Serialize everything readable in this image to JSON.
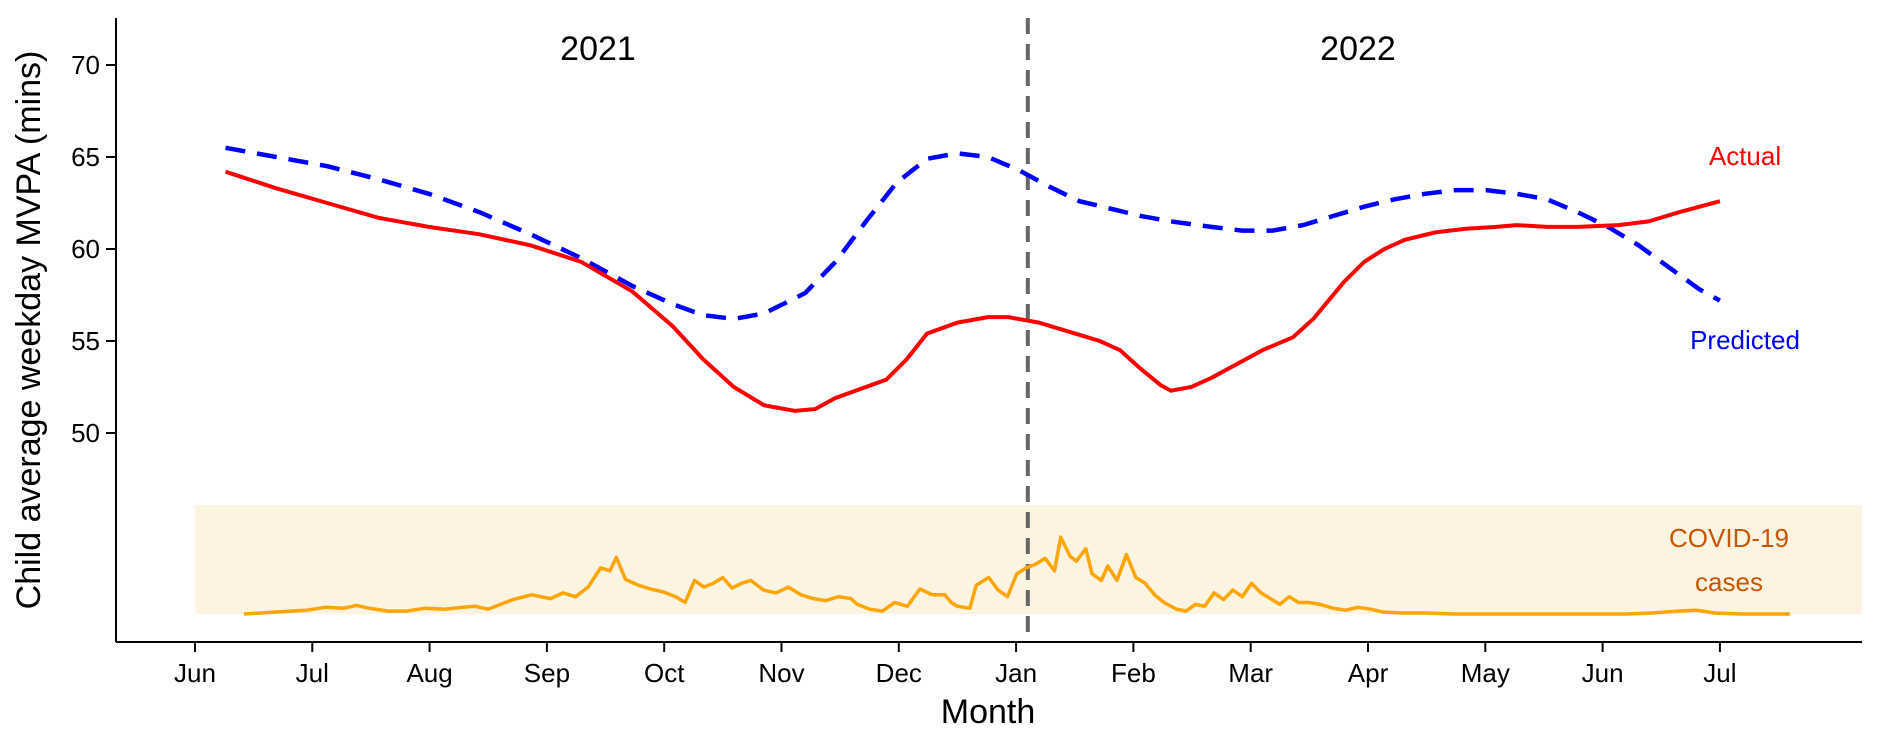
{
  "chart_data": {
    "type": "line",
    "xlabel": "Month",
    "ylabel": "Child average weekday MVPA (mins)",
    "x_tick_labels": [
      "Jun",
      "Jul",
      "Aug",
      "Sep",
      "Oct",
      "Nov",
      "Dec",
      "Jan",
      "Feb",
      "Mar",
      "Apr",
      "May",
      "Jun",
      "Jul"
    ],
    "x_range_months": [
      0,
      14.6
    ],
    "ylim": [
      42.5,
      72.5
    ],
    "y_ticks": [
      50,
      55,
      60,
      65,
      70
    ],
    "year_labels": [
      "2021",
      "2022"
    ],
    "year_divider_month": 7.1,
    "grid": false,
    "series": [
      {
        "name": "Actual",
        "color": "#ff0000",
        "dash": "solid",
        "points": [
          [
            0.3,
            64.2
          ],
          [
            0.8,
            63.3
          ],
          [
            1.3,
            62.5
          ],
          [
            1.8,
            61.7
          ],
          [
            2.3,
            61.2
          ],
          [
            2.8,
            60.8
          ],
          [
            3.3,
            60.2
          ],
          [
            3.8,
            59.3
          ],
          [
            4.3,
            57.7
          ],
          [
            4.7,
            55.8
          ],
          [
            5.0,
            54.0
          ],
          [
            5.3,
            52.5
          ],
          [
            5.6,
            51.5
          ],
          [
            5.9,
            51.2
          ],
          [
            6.1,
            51.3
          ],
          [
            6.3,
            51.9
          ],
          [
            6.8,
            52.9
          ],
          [
            7.0,
            54.0
          ],
          [
            7.2,
            55.4
          ],
          [
            7.5,
            56.0
          ],
          [
            7.8,
            56.3
          ],
          [
            8.0,
            56.3
          ],
          [
            8.3,
            56.0
          ],
          [
            8.6,
            55.5
          ],
          [
            8.9,
            55.0
          ],
          [
            9.1,
            54.5
          ],
          [
            9.3,
            53.5
          ],
          [
            9.5,
            52.6
          ],
          [
            9.6,
            52.3
          ],
          [
            9.8,
            52.5
          ],
          [
            10.0,
            53.0
          ],
          [
            10.2,
            53.6
          ],
          [
            10.5,
            54.5
          ],
          [
            10.8,
            55.2
          ],
          [
            11.0,
            56.2
          ],
          [
            11.3,
            58.2
          ],
          [
            11.5,
            59.3
          ],
          [
            11.7,
            60.0
          ],
          [
            11.9,
            60.5
          ],
          [
            12.2,
            60.9
          ],
          [
            12.5,
            61.1
          ],
          [
            12.8,
            61.2
          ],
          [
            13.0,
            61.3
          ],
          [
            13.3,
            61.2
          ],
          [
            13.6,
            61.2
          ],
          [
            14.0,
            61.3
          ],
          [
            14.3,
            61.5
          ],
          [
            14.6,
            62.0
          ],
          [
            15.0,
            62.6
          ]
        ]
      },
      {
        "name": "Predicted",
        "color": "#0000ff",
        "dash": "dashed",
        "points": [
          [
            0.3,
            65.5
          ],
          [
            0.8,
            65.0
          ],
          [
            1.3,
            64.5
          ],
          [
            1.8,
            63.8
          ],
          [
            2.3,
            63.0
          ],
          [
            2.8,
            62.0
          ],
          [
            3.3,
            60.8
          ],
          [
            3.8,
            59.5
          ],
          [
            4.3,
            58.0
          ],
          [
            4.7,
            57.0
          ],
          [
            5.0,
            56.4
          ],
          [
            5.3,
            56.2
          ],
          [
            5.6,
            56.5
          ],
          [
            6.0,
            57.6
          ],
          [
            6.3,
            59.3
          ],
          [
            6.6,
            61.5
          ],
          [
            6.9,
            63.6
          ],
          [
            7.2,
            64.9
          ],
          [
            7.5,
            65.2
          ],
          [
            7.8,
            65.0
          ],
          [
            8.1,
            64.3
          ],
          [
            8.4,
            63.4
          ],
          [
            8.7,
            62.6
          ],
          [
            9.0,
            62.2
          ],
          [
            9.3,
            61.8
          ],
          [
            9.6,
            61.5
          ],
          [
            10.0,
            61.2
          ],
          [
            10.3,
            61.0
          ],
          [
            10.6,
            61.0
          ],
          [
            10.9,
            61.3
          ],
          [
            11.2,
            61.8
          ],
          [
            11.5,
            62.3
          ],
          [
            11.8,
            62.7
          ],
          [
            12.1,
            63.0
          ],
          [
            12.4,
            63.2
          ],
          [
            12.7,
            63.2
          ],
          [
            13.0,
            63.0
          ],
          [
            13.3,
            62.7
          ],
          [
            13.6,
            62.0
          ],
          [
            13.9,
            61.2
          ],
          [
            14.2,
            60.2
          ],
          [
            14.5,
            59.0
          ],
          [
            14.8,
            57.8
          ],
          [
            15.0,
            57.2
          ]
        ]
      }
    ],
    "series_labels": {
      "actual": "Actual",
      "predicted": "Predicted"
    },
    "covid_panel": {
      "label_line1": "COVID-19",
      "label_line2": "cases",
      "fill_color": "#fdf3e1",
      "line_color": "#ffa500",
      "label_color": "#cc5500",
      "relative_values": [
        [
          0.3,
          0.0
        ],
        [
          0.8,
          0.02
        ],
        [
          1.3,
          0.04
        ],
        [
          1.6,
          0.07
        ],
        [
          1.9,
          0.06
        ],
        [
          2.1,
          0.09
        ],
        [
          2.3,
          0.06
        ],
        [
          2.6,
          0.03
        ],
        [
          2.9,
          0.03
        ],
        [
          3.2,
          0.06
        ],
        [
          3.5,
          0.05
        ],
        [
          3.8,
          0.07
        ],
        [
          4.0,
          0.08
        ],
        [
          4.2,
          0.05
        ],
        [
          4.4,
          0.1
        ],
        [
          4.6,
          0.15
        ],
        [
          4.9,
          0.2
        ],
        [
          5.2,
          0.16
        ],
        [
          5.4,
          0.22
        ],
        [
          5.6,
          0.18
        ],
        [
          5.8,
          0.28
        ],
        [
          6.0,
          0.48
        ],
        [
          6.15,
          0.45
        ],
        [
          6.25,
          0.59
        ],
        [
          6.4,
          0.36
        ],
        [
          6.6,
          0.3
        ],
        [
          6.8,
          0.26
        ],
        [
          7.0,
          0.23
        ],
        [
          7.2,
          0.18
        ],
        [
          7.35,
          0.12
        ],
        [
          7.5,
          0.35
        ],
        [
          7.65,
          0.28
        ],
        [
          7.8,
          0.32
        ],
        [
          7.95,
          0.38
        ],
        [
          8.1,
          0.27
        ],
        [
          8.25,
          0.32
        ],
        [
          8.4,
          0.35
        ],
        [
          8.6,
          0.25
        ],
        [
          8.8,
          0.22
        ],
        [
          9.0,
          0.28
        ],
        [
          9.2,
          0.2
        ],
        [
          9.4,
          0.16
        ],
        [
          9.6,
          0.14
        ],
        [
          9.8,
          0.18
        ],
        [
          10.0,
          0.16
        ],
        [
          10.1,
          0.1
        ],
        [
          10.3,
          0.05
        ],
        [
          10.5,
          0.03
        ],
        [
          10.7,
          0.12
        ],
        [
          10.9,
          0.08
        ],
        [
          11.1,
          0.26
        ],
        [
          11.3,
          0.2
        ],
        [
          11.5,
          0.2
        ],
        [
          11.6,
          0.12
        ],
        [
          11.7,
          0.08
        ],
        [
          11.9,
          0.06
        ],
        [
          12.0,
          0.3
        ],
        [
          12.2,
          0.38
        ],
        [
          12.35,
          0.25
        ],
        [
          12.5,
          0.18
        ],
        [
          12.65,
          0.42
        ],
        [
          12.8,
          0.48
        ],
        [
          12.95,
          0.52
        ],
        [
          13.1,
          0.58
        ],
        [
          13.25,
          0.45
        ],
        [
          13.35,
          0.8
        ],
        [
          13.5,
          0.6
        ],
        [
          13.6,
          0.55
        ],
        [
          13.75,
          0.68
        ],
        [
          13.85,
          0.42
        ],
        [
          14.0,
          0.35
        ],
        [
          14.1,
          0.5
        ],
        [
          14.25,
          0.35
        ],
        [
          14.4,
          0.62
        ],
        [
          14.55,
          0.38
        ],
        [
          14.7,
          0.32
        ],
        [
          14.85,
          0.2
        ],
        [
          15.0,
          0.12
        ],
        [
          15.2,
          0.05
        ],
        [
          15.35,
          0.03
        ],
        [
          15.5,
          0.1
        ],
        [
          15.65,
          0.08
        ],
        [
          15.8,
          0.22
        ],
        [
          15.95,
          0.15
        ],
        [
          16.1,
          0.25
        ],
        [
          16.25,
          0.18
        ],
        [
          16.4,
          0.32
        ],
        [
          16.55,
          0.22
        ],
        [
          16.7,
          0.16
        ],
        [
          16.85,
          0.1
        ],
        [
          17.0,
          0.18
        ],
        [
          17.15,
          0.12
        ],
        [
          17.3,
          0.12
        ],
        [
          17.5,
          0.1
        ],
        [
          17.7,
          0.06
        ],
        [
          17.9,
          0.04
        ],
        [
          18.1,
          0.07
        ],
        [
          18.3,
          0.05
        ],
        [
          18.5,
          0.02
        ],
        [
          18.8,
          0.01
        ],
        [
          19.2,
          0.01
        ],
        [
          19.6,
          0.0
        ],
        [
          20.0,
          0.0
        ],
        [
          20.6,
          0.0
        ],
        [
          21.2,
          0.0
        ],
        [
          21.8,
          0.0
        ],
        [
          22.4,
          0.0
        ],
        [
          22.8,
          0.01
        ],
        [
          23.2,
          0.03
        ],
        [
          23.5,
          0.04
        ],
        [
          23.8,
          0.01
        ],
        [
          24.2,
          0.0
        ],
        [
          24.6,
          0.0
        ],
        [
          25.0,
          0.0
        ]
      ],
      "x_domain": [
        0,
        25
      ]
    }
  }
}
